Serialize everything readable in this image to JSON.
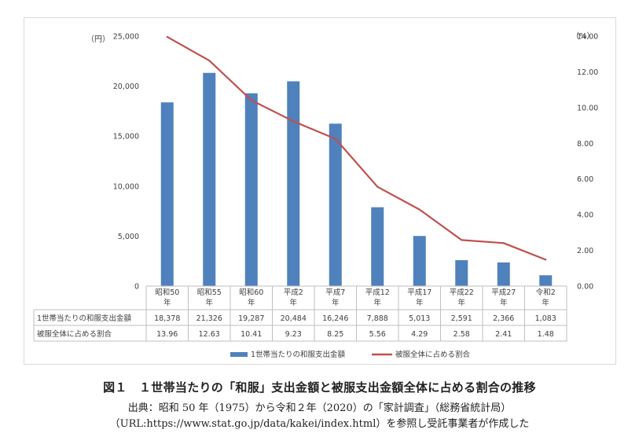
{
  "chart_data": {
    "type": "bar+line",
    "categories": [
      [
        "昭和50",
        "年"
      ],
      [
        "昭和55",
        "年"
      ],
      [
        "昭和60",
        "年"
      ],
      [
        "平成2",
        "年"
      ],
      [
        "平成7",
        "年"
      ],
      [
        "平成12",
        "年"
      ],
      [
        "平成17",
        "年"
      ],
      [
        "平成22",
        "年"
      ],
      [
        "平成27",
        "年"
      ],
      [
        "令和2",
        "年"
      ]
    ],
    "series": [
      {
        "name": "1世帯当たりの和服支出金額",
        "type": "bar",
        "axis": "left",
        "color": "#4f81bd",
        "values": [
          18378,
          21326,
          19287,
          20484,
          16246,
          7888,
          5013,
          2591,
          2366,
          1083
        ],
        "labels": [
          "18,378",
          "21,326",
          "19,287",
          "20,484",
          "16,246",
          "7,888",
          "5,013",
          "2,591",
          "2,366",
          "1,083"
        ]
      },
      {
        "name": "被服全体に占める割合",
        "type": "line",
        "axis": "right",
        "color": "#c0504d",
        "values": [
          13.96,
          12.63,
          10.41,
          9.23,
          8.25,
          5.56,
          4.29,
          2.58,
          2.41,
          1.48
        ],
        "labels": [
          "13.96",
          "12.63",
          "10.41",
          "9.23",
          "8.25",
          "5.56",
          "4.29",
          "2.58",
          "2.41",
          "1.48"
        ]
      }
    ],
    "y_left": {
      "unit": "（円）",
      "range": [
        0,
        25000
      ],
      "ticks": [
        0,
        5000,
        10000,
        15000,
        20000,
        25000
      ],
      "tick_labels": [
        "0",
        "5,000",
        "10,000",
        "15,000",
        "20,000",
        "25,000"
      ]
    },
    "y_right": {
      "unit": "（%）",
      "range": [
        0,
        14
      ],
      "ticks": [
        0,
        2,
        4,
        6,
        8,
        10,
        12,
        14
      ],
      "tick_labels": [
        "0.00",
        "2.00",
        "4.00",
        "6.00",
        "8.00",
        "10.00",
        "12.00",
        "14.00"
      ]
    },
    "grid": false,
    "legend": "bottom"
  },
  "caption": {
    "title": "図１　１世帯当たりの「和服」支出金額と被服支出金額全体に占める割合の推移",
    "source_line1": "出典：昭和 50 年（1975）から令和２年（2020）の「家計調査」（総務省統計局）",
    "source_line2": "（URL:https://www.stat.go.jp/data/kakei/index.html）を参照し受託事業者が作成した"
  }
}
